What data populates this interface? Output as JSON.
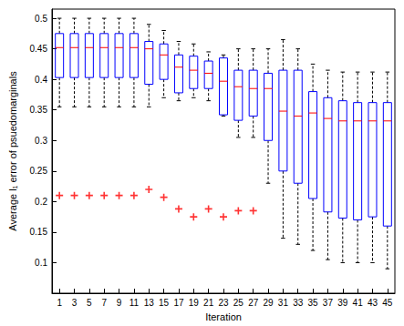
{
  "chart_data": {
    "type": "boxplot",
    "x_label": "Iteration",
    "y_label": "Average l₁ error of psuedomarginals",
    "categories": [
      1,
      3,
      5,
      7,
      9,
      11,
      13,
      15,
      17,
      19,
      21,
      23,
      25,
      27,
      29,
      31,
      33,
      35,
      37,
      39,
      41,
      43,
      45
    ],
    "ylim": [
      0.05,
      0.515
    ],
    "yticks": [
      0.1,
      0.15,
      0.2,
      0.25,
      0.3,
      0.35,
      0.4,
      0.45,
      0.5
    ],
    "series": [
      {
        "type": "boxplot",
        "color": "#0000ff",
        "values": [
          [
            0.355,
            0.403,
            0.452,
            0.475,
            0.5
          ],
          [
            0.355,
            0.403,
            0.452,
            0.475,
            0.5
          ],
          [
            0.355,
            0.403,
            0.452,
            0.475,
            0.5
          ],
          [
            0.355,
            0.403,
            0.452,
            0.475,
            0.5
          ],
          [
            0.355,
            0.403,
            0.452,
            0.475,
            0.5
          ],
          [
            0.355,
            0.403,
            0.452,
            0.475,
            0.5
          ],
          [
            0.355,
            0.392,
            0.45,
            0.462,
            0.49
          ],
          [
            0.37,
            0.4,
            0.44,
            0.458,
            0.48
          ],
          [
            0.365,
            0.378,
            0.42,
            0.44,
            0.462
          ],
          [
            0.37,
            0.385,
            0.415,
            0.438,
            0.458
          ],
          [
            0.365,
            0.385,
            0.41,
            0.43,
            0.445
          ],
          [
            0.34,
            0.342,
            0.397,
            0.435,
            0.44
          ],
          [
            0.305,
            0.333,
            0.388,
            0.415,
            0.45
          ],
          [
            0.305,
            0.34,
            0.385,
            0.415,
            0.45
          ],
          [
            0.23,
            0.3,
            0.385,
            0.41,
            0.45
          ],
          [
            0.14,
            0.25,
            0.348,
            0.415,
            0.465
          ],
          [
            0.13,
            0.23,
            0.34,
            0.415,
            0.45
          ],
          [
            0.12,
            0.205,
            0.345,
            0.38,
            0.425
          ],
          [
            0.105,
            0.183,
            0.336,
            0.37,
            0.415
          ],
          [
            0.1,
            0.173,
            0.332,
            0.365,
            0.412
          ],
          [
            0.1,
            0.17,
            0.332,
            0.362,
            0.412
          ],
          [
            0.1,
            0.175,
            0.332,
            0.362,
            0.412
          ],
          [
            0.09,
            0.16,
            0.332,
            0.362,
            0.412
          ]
        ]
      },
      {
        "type": "scatter",
        "color": "#ff0000",
        "marker": "plus",
        "values": [
          0.21,
          0.21,
          0.21,
          0.21,
          0.21,
          0.21,
          0.22,
          0.207,
          0.188,
          0.175,
          0.188,
          0.175,
          0.185,
          0.185,
          null,
          null,
          null,
          null,
          null,
          null,
          null,
          null,
          null
        ]
      }
    ]
  }
}
